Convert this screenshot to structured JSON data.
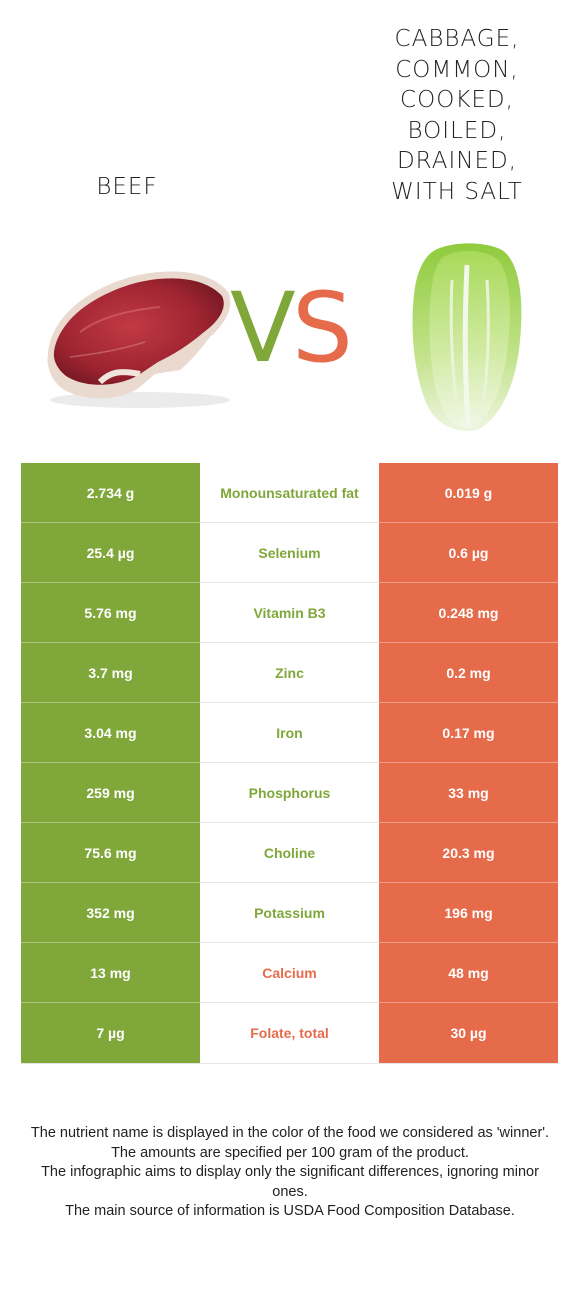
{
  "food_left": {
    "name": "Beef",
    "color": "#80a73a"
  },
  "food_right": {
    "name": "Cabbage, common, cooked, boiled, drained, with salt",
    "color": "#e56b4b"
  },
  "vs": {
    "v": "V",
    "s": "S"
  },
  "rows": [
    {
      "left": "2.734 g",
      "nutrient": "Monounsaturated fat",
      "right": "0.019 g",
      "winner": "left"
    },
    {
      "left": "25.4 µg",
      "nutrient": "Selenium",
      "right": "0.6 µg",
      "winner": "left"
    },
    {
      "left": "5.76 mg",
      "nutrient": "Vitamin B3",
      "right": "0.248 mg",
      "winner": "left"
    },
    {
      "left": "3.7 mg",
      "nutrient": "Zinc",
      "right": "0.2 mg",
      "winner": "left"
    },
    {
      "left": "3.04 mg",
      "nutrient": "Iron",
      "right": "0.17 mg",
      "winner": "left"
    },
    {
      "left": "259 mg",
      "nutrient": "Phosphorus",
      "right": "33 mg",
      "winner": "left"
    },
    {
      "left": "75.6 mg",
      "nutrient": "Choline",
      "right": "20.3 mg",
      "winner": "left"
    },
    {
      "left": "352 mg",
      "nutrient": "Potassium",
      "right": "196 mg",
      "winner": "left"
    },
    {
      "left": "13 mg",
      "nutrient": "Calcium",
      "right": "48 mg",
      "winner": "right"
    },
    {
      "left": "7 µg",
      "nutrient": "Folate, total",
      "right": "30 µg",
      "winner": "right"
    }
  ],
  "footer": [
    "The nutrient name is displayed in the color of the food we considered as 'winner'.",
    "The amounts are specified per 100 gram of the product.",
    "The infographic aims to display only the significant differences, ignoring minor ones.",
    "The main source of information is USDA Food Composition Database."
  ]
}
